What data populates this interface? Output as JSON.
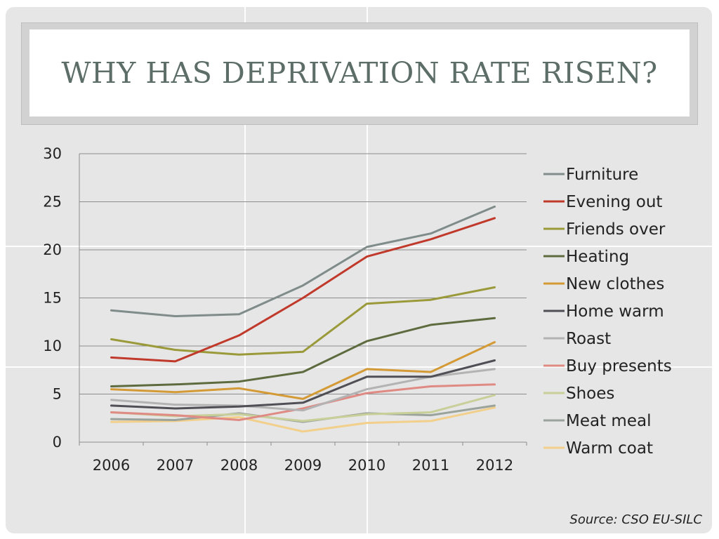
{
  "slide": {
    "title": "WHY HAS DEPRIVATION RATE RISEN?",
    "source": "Source: CSO EU-SILC"
  },
  "chart_data": {
    "type": "line",
    "title": "",
    "xlabel": "",
    "ylabel": "",
    "x": [
      "2006",
      "2007",
      "2008",
      "2009",
      "2010",
      "2011",
      "2012"
    ],
    "ylim": [
      0,
      30
    ],
    "yticks": [
      0,
      5,
      10,
      15,
      20,
      25,
      30
    ],
    "grid": true,
    "legend_position": "right",
    "series": [
      {
        "name": "Furniture",
        "color": "#7f8c8a",
        "values": [
          13.7,
          13.1,
          13.3,
          16.3,
          20.3,
          21.7,
          24.5
        ]
      },
      {
        "name": "Evening out",
        "color": "#c0392b",
        "values": [
          8.8,
          8.4,
          11.1,
          15.0,
          19.3,
          21.1,
          23.3
        ]
      },
      {
        "name": "Friends over",
        "color": "#9a9a3a",
        "values": [
          10.7,
          9.6,
          9.1,
          9.4,
          14.4,
          14.8,
          16.1
        ]
      },
      {
        "name": "Heating",
        "color": "#5e6b3f",
        "values": [
          5.8,
          6.0,
          6.3,
          7.3,
          10.5,
          12.2,
          12.9
        ]
      },
      {
        "name": "New clothes",
        "color": "#d49a36",
        "values": [
          5.5,
          5.2,
          5.6,
          4.5,
          7.6,
          7.3,
          10.4
        ]
      },
      {
        "name": "Home warm",
        "color": "#4f4f55",
        "values": [
          3.8,
          3.5,
          3.7,
          4.1,
          6.8,
          6.8,
          8.5
        ]
      },
      {
        "name": "Roast",
        "color": "#b3b3b3",
        "values": [
          4.4,
          3.9,
          3.8,
          3.3,
          5.5,
          6.8,
          7.6
        ]
      },
      {
        "name": "Buy presents",
        "color": "#e08a84",
        "values": [
          3.1,
          2.8,
          2.3,
          3.5,
          5.1,
          5.8,
          6.0
        ]
      },
      {
        "name": "Shoes",
        "color": "#c9cf98",
        "values": [
          3.1,
          2.7,
          2.9,
          2.2,
          2.9,
          3.1,
          4.9
        ]
      },
      {
        "name": "Meat meal",
        "color": "#9aa39c",
        "values": [
          2.4,
          2.3,
          3.0,
          2.1,
          3.0,
          2.8,
          3.8
        ]
      },
      {
        "name": "Warm coat",
        "color": "#f2cf8a",
        "values": [
          2.1,
          2.2,
          2.6,
          1.1,
          2.0,
          2.2,
          3.6
        ]
      }
    ]
  }
}
